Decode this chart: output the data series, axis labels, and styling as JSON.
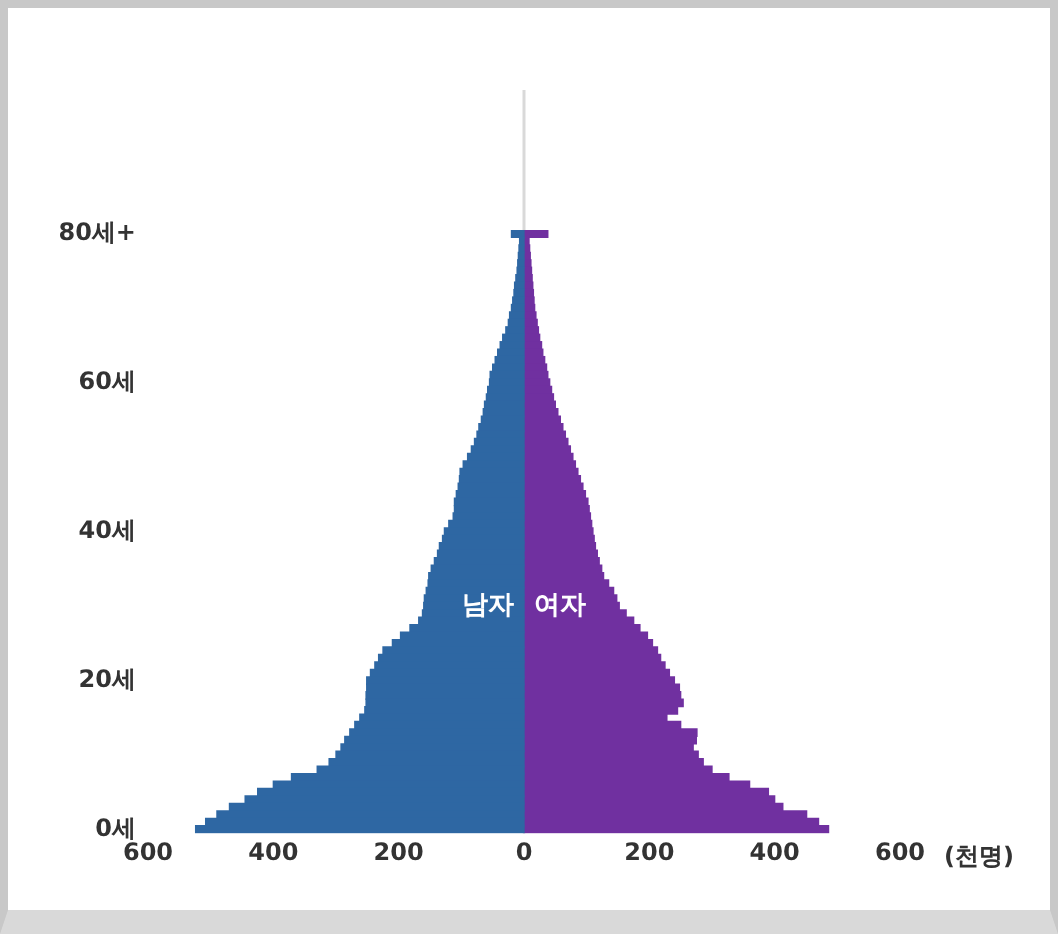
{
  "chart_data": {
    "type": "bar",
    "orientation": "horizontal",
    "stacked": true,
    "xlabel": "(천명)",
    "categories": [
      "80세+",
      null,
      null,
      null,
      null,
      null,
      null,
      null,
      null,
      null,
      null,
      null,
      null,
      null,
      null,
      null,
      null,
      null,
      null,
      null,
      "60세",
      null,
      null,
      null,
      null,
      null,
      null,
      null,
      null,
      null,
      null,
      null,
      null,
      null,
      null,
      null,
      null,
      null,
      null,
      null,
      "40세",
      null,
      null,
      null,
      null,
      null,
      null,
      null,
      null,
      null,
      null,
      null,
      null,
      null,
      null,
      null,
      null,
      null,
      null,
      null,
      "20세",
      null,
      null,
      null,
      null,
      null,
      null,
      null,
      null,
      null,
      null,
      null,
      null,
      null,
      null,
      null,
      null,
      null,
      null,
      null,
      "0세"
    ],
    "series": [
      {
        "name": "남자",
        "color": "#2e67a3",
        "values": [
          -20,
          -7,
          -8,
          -9,
          -10,
          -11,
          -13,
          -15,
          -16,
          -18,
          -20,
          -23,
          -25,
          -29,
          -34,
          -38,
          -42,
          -46,
          -50,
          -54,
          -55,
          -58,
          -60,
          -63,
          -65,
          -68,
          -72,
          -75,
          -79,
          -84,
          -90,
          -97,
          -102,
          -103,
          -105,
          -108,
          -111,
          -111,
          -113,
          -120,
          -127,
          -130,
          -135,
          -138,
          -143,
          -148,
          -152,
          -153,
          -156,
          -159,
          -160,
          -162,
          -168,
          -182,
          -197,
          -210,
          -225,
          -232,
          -238,
          -245,
          -251,
          -251,
          -252,
          -252,
          -254,
          -262,
          -270,
          -278,
          -286,
          -292,
          -300,
          -311,
          -330,
          -371,
          -400,
          -425,
          -445,
          -470,
          -490,
          -508,
          -524
        ]
      },
      {
        "name": "여자",
        "color": "#7030a0",
        "values": [
          38,
          8,
          9,
          10,
          11,
          12,
          13,
          14,
          15,
          16,
          17,
          19,
          21,
          23,
          25,
          28,
          30,
          33,
          36,
          38,
          41,
          44,
          47,
          50,
          54,
          58,
          62,
          66,
          70,
          74,
          78,
          82,
          86,
          90,
          94,
          98,
          102,
          104,
          106,
          108,
          110,
          112,
          114,
          117,
          120,
          124,
          127,
          135,
          143,
          148,
          152,
          163,
          175,
          185,
          197,
          205,
          213,
          218,
          225,
          232,
          240,
          248,
          250,
          254,
          245,
          228,
          250,
          276,
          275,
          270,
          278,
          286,
          300,
          327,
          360,
          390,
          400,
          413,
          451,
          470,
          486
        ]
      }
    ],
    "xlim": [
      -600,
      600
    ],
    "xticks": [
      {
        "value": -600,
        "label": "600"
      },
      {
        "value": -400,
        "label": "400"
      },
      {
        "value": -200,
        "label": "200"
      },
      0,
      200,
      400,
      600
    ],
    "ref_lines": [
      {
        "axis": "x",
        "value": 0,
        "color": "#d9d9d9"
      }
    ],
    "grid": false,
    "legend": false
  }
}
